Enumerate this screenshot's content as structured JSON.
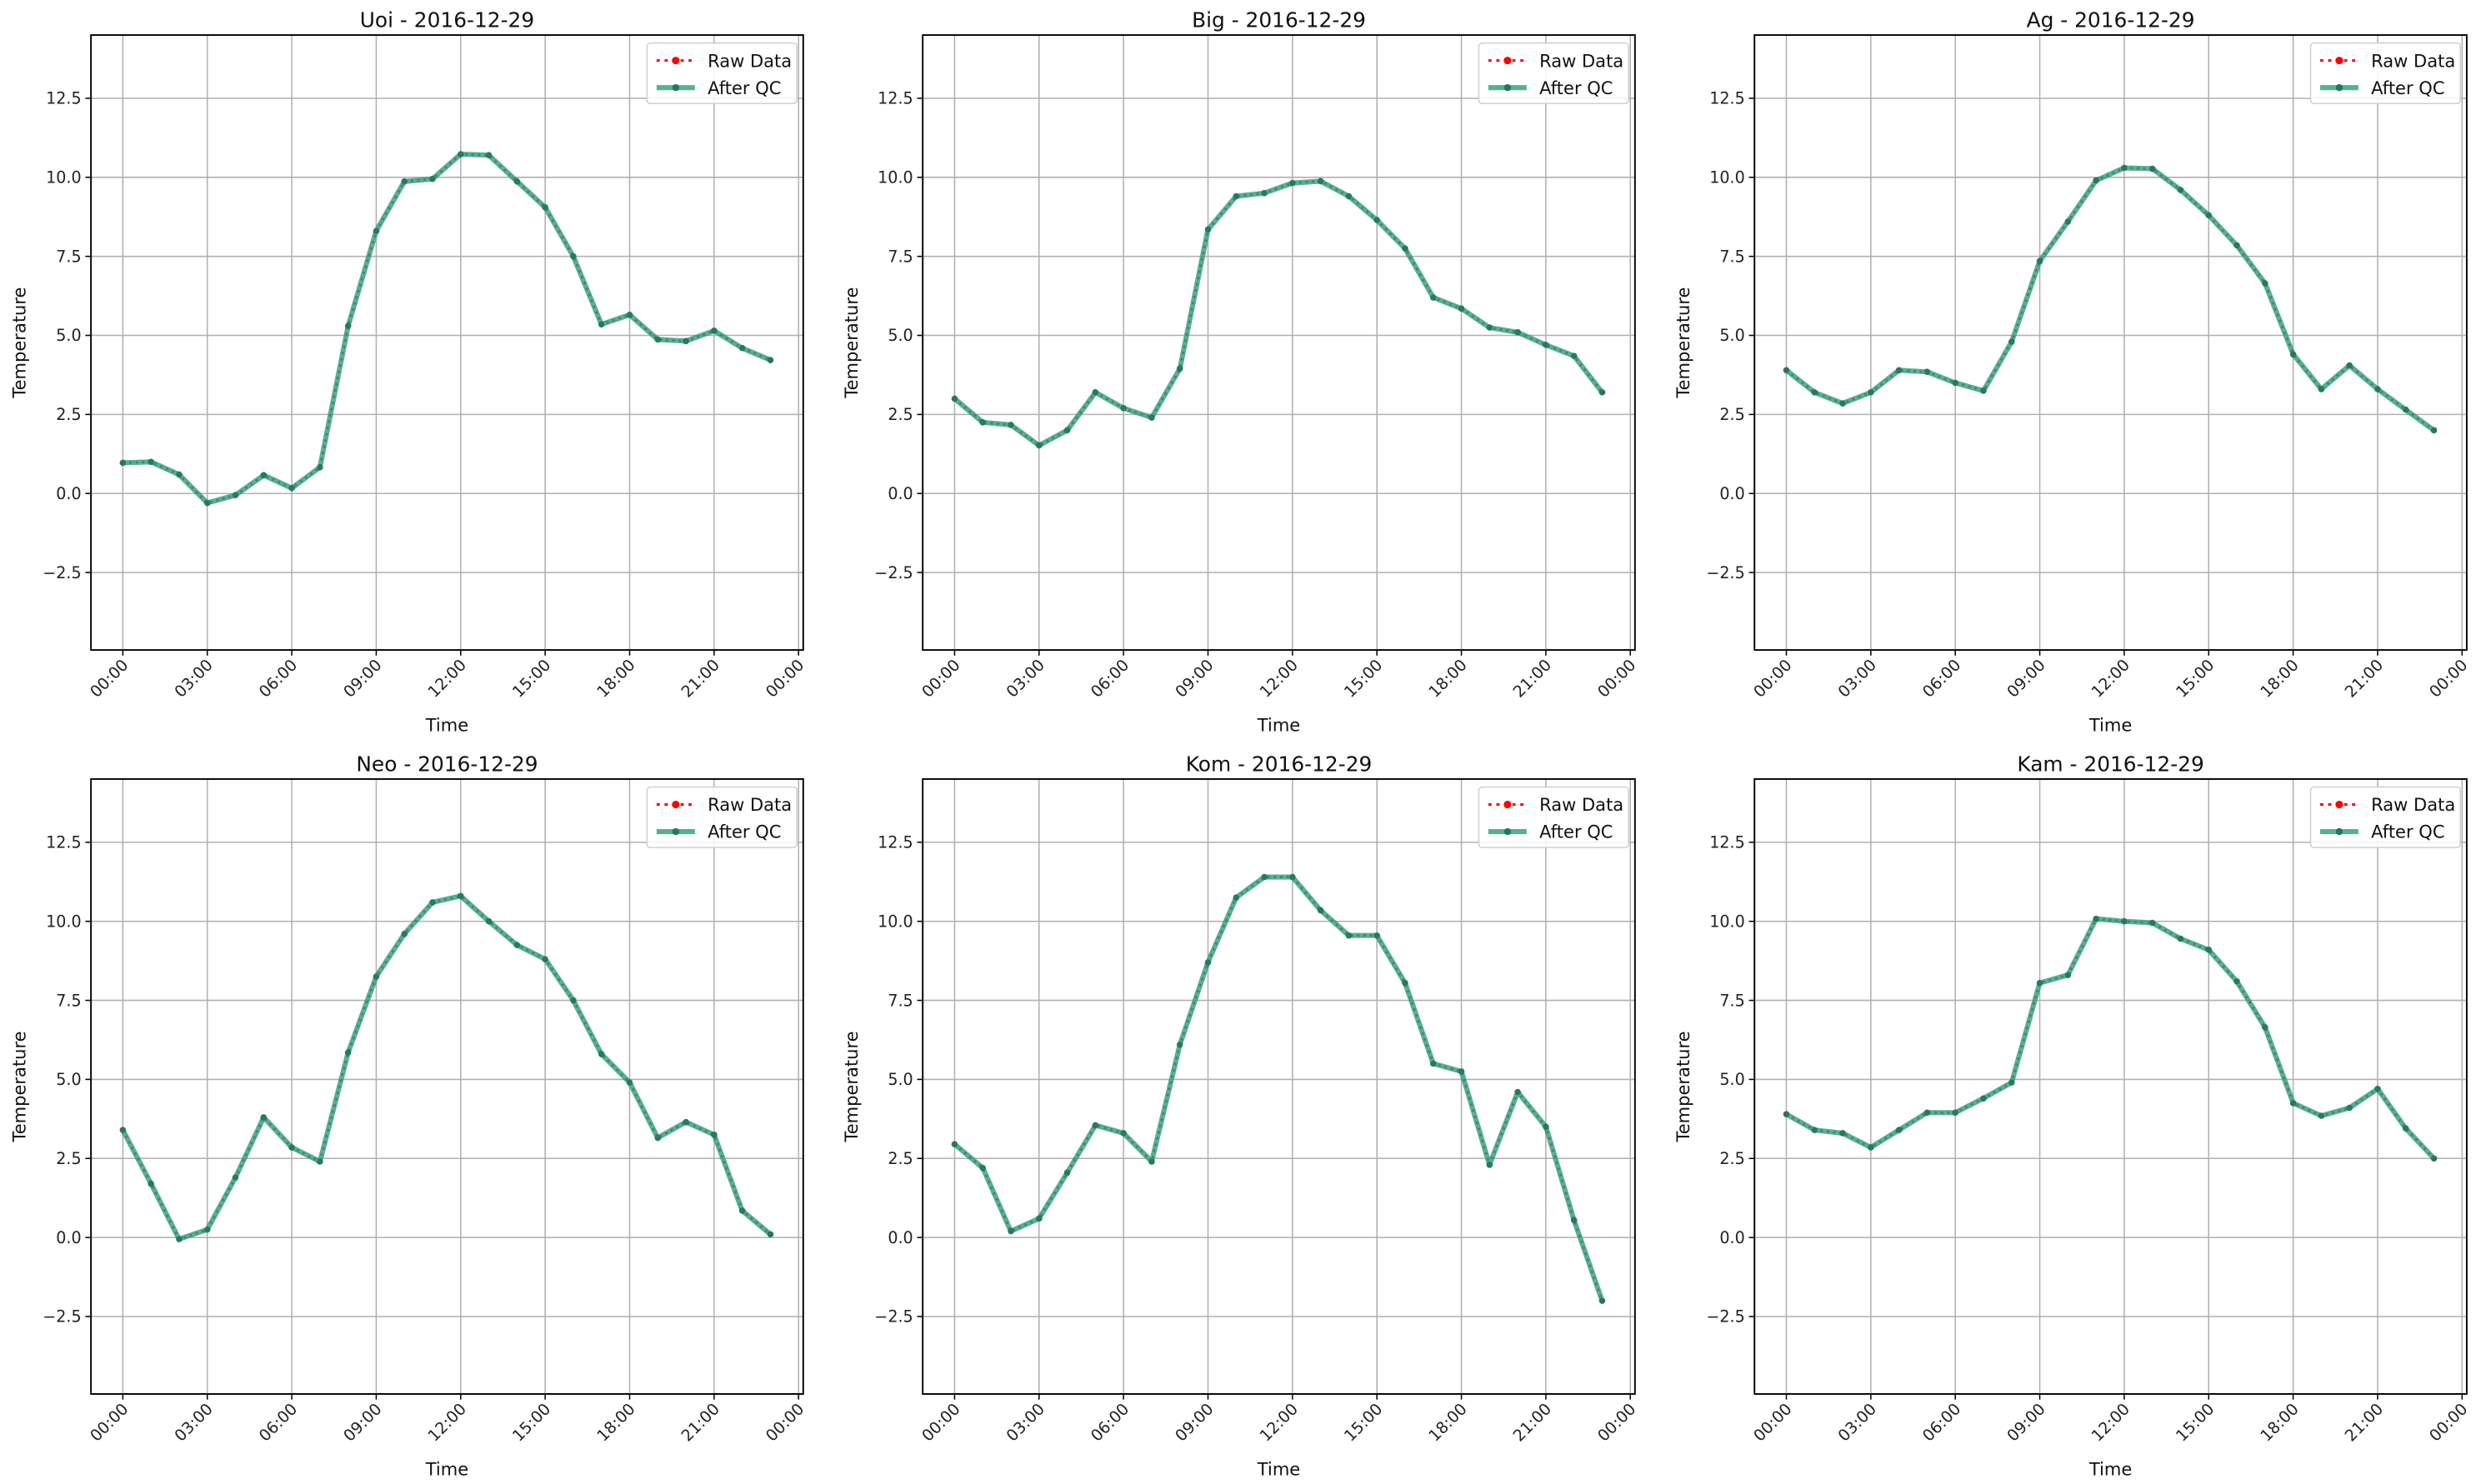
{
  "chart_data": [
    {
      "type": "line",
      "title": "Uoi - 2016-12-29",
      "xlabel": "Time",
      "ylabel": "Temperature",
      "x": [
        "00:00",
        "01:00",
        "02:00",
        "03:00",
        "04:00",
        "05:00",
        "06:00",
        "07:00",
        "08:00",
        "09:00",
        "10:00",
        "11:00",
        "12:00",
        "13:00",
        "14:00",
        "15:00",
        "16:00",
        "17:00",
        "18:00",
        "19:00",
        "20:00",
        "21:00",
        "22:00",
        "23:00"
      ],
      "series": [
        {
          "name": "Raw Data",
          "values": [
            0.97,
            1.0,
            0.6,
            -0.3,
            -0.05,
            0.58,
            0.17,
            0.83,
            5.3,
            8.3,
            9.87,
            9.95,
            10.73,
            10.7,
            9.87,
            9.05,
            7.5,
            5.35,
            5.65,
            4.87,
            4.82,
            5.15,
            4.6,
            4.22
          ]
        },
        {
          "name": "After QC",
          "values": [
            0.97,
            1.0,
            0.6,
            -0.3,
            -0.05,
            0.58,
            0.17,
            0.83,
            5.3,
            8.3,
            9.87,
            9.95,
            10.73,
            10.7,
            9.87,
            9.05,
            7.5,
            5.35,
            5.65,
            4.87,
            4.82,
            5.15,
            4.6,
            4.22
          ]
        }
      ]
    },
    {
      "type": "line",
      "title": "Big - 2016-12-29",
      "xlabel": "Time",
      "ylabel": "Temperature",
      "series": [
        {
          "name": "Raw Data",
          "values": [
            3.0,
            2.25,
            2.17,
            1.52,
            2.0,
            3.2,
            2.7,
            2.4,
            3.95,
            8.35,
            9.4,
            9.5,
            9.82,
            9.88,
            9.4,
            8.65,
            7.75,
            6.2,
            5.85,
            5.25,
            5.1,
            4.7,
            4.35,
            3.2
          ]
        },
        {
          "name": "After QC",
          "values": [
            3.0,
            2.25,
            2.17,
            1.52,
            2.0,
            3.2,
            2.7,
            2.4,
            3.95,
            8.35,
            9.4,
            9.5,
            9.82,
            9.88,
            9.4,
            8.65,
            7.75,
            6.2,
            5.85,
            5.25,
            5.1,
            4.7,
            4.35,
            3.2
          ]
        }
      ]
    },
    {
      "type": "line",
      "title": "Ag - 2016-12-29",
      "xlabel": "Time",
      "ylabel": "Temperature",
      "series": [
        {
          "name": "Raw Data",
          "values": [
            3.9,
            3.2,
            2.85,
            3.2,
            3.9,
            3.85,
            3.5,
            3.25,
            4.8,
            7.35,
            8.6,
            9.9,
            10.3,
            10.27,
            9.6,
            8.8,
            7.85,
            6.65,
            4.4,
            3.3,
            4.05,
            3.3,
            2.65,
            2.0
          ]
        },
        {
          "name": "After QC",
          "values": [
            3.9,
            3.2,
            2.85,
            3.2,
            3.9,
            3.85,
            3.5,
            3.25,
            4.8,
            7.35,
            8.6,
            9.9,
            10.3,
            10.27,
            9.6,
            8.8,
            7.85,
            6.65,
            4.4,
            3.3,
            4.05,
            3.3,
            2.65,
            2.0
          ]
        }
      ]
    },
    {
      "type": "line",
      "title": "Neo - 2016-12-29",
      "xlabel": "Time",
      "ylabel": "Temperature",
      "series": [
        {
          "name": "Raw Data",
          "values": [
            3.4,
            1.7,
            -0.05,
            0.25,
            1.9,
            3.8,
            2.85,
            2.4,
            5.85,
            8.25,
            9.6,
            10.6,
            10.8,
            10.0,
            9.25,
            8.8,
            7.5,
            5.8,
            4.9,
            3.15,
            3.65,
            3.25,
            0.85,
            0.1
          ]
        },
        {
          "name": "After QC",
          "values": [
            3.4,
            1.7,
            -0.05,
            0.25,
            1.9,
            3.8,
            2.85,
            2.4,
            5.85,
            8.25,
            9.6,
            10.6,
            10.8,
            10.0,
            9.25,
            8.8,
            7.5,
            5.8,
            4.9,
            3.15,
            3.65,
            3.25,
            0.85,
            0.1
          ]
        }
      ]
    },
    {
      "type": "line",
      "title": "Kom - 2016-12-29",
      "xlabel": "Time",
      "ylabel": "Temperature",
      "series": [
        {
          "name": "Raw Data",
          "values": [
            2.95,
            2.2,
            0.2,
            0.6,
            2.05,
            3.55,
            3.3,
            2.4,
            6.1,
            8.7,
            10.75,
            11.4,
            11.4,
            10.35,
            9.55,
            9.55,
            8.05,
            5.5,
            5.25,
            2.3,
            4.6,
            3.5,
            0.55,
            -2.0
          ]
        },
        {
          "name": "After QC",
          "values": [
            2.95,
            2.2,
            0.2,
            0.6,
            2.05,
            3.55,
            3.3,
            2.4,
            6.1,
            8.7,
            10.75,
            11.4,
            11.4,
            10.35,
            9.55,
            9.55,
            8.05,
            5.5,
            5.25,
            2.3,
            4.6,
            3.5,
            0.55,
            -2.0
          ]
        }
      ]
    },
    {
      "type": "line",
      "title": "Kam - 2016-12-29",
      "xlabel": "Time",
      "ylabel": "Temperature",
      "series": [
        {
          "name": "Raw Data",
          "values": [
            3.9,
            3.4,
            3.3,
            2.85,
            3.4,
            3.95,
            3.95,
            4.4,
            4.9,
            8.05,
            8.3,
            10.08,
            10.0,
            9.95,
            9.45,
            9.1,
            8.1,
            6.65,
            4.25,
            3.85,
            4.1,
            4.7,
            3.45,
            2.5
          ]
        },
        {
          "name": "After QC",
          "values": [
            3.9,
            3.4,
            3.3,
            2.85,
            3.4,
            3.95,
            3.95,
            4.4,
            4.9,
            8.05,
            8.3,
            10.08,
            10.0,
            9.95,
            9.45,
            9.1,
            8.1,
            6.65,
            4.25,
            3.85,
            4.1,
            4.7,
            3.45,
            2.5
          ]
        }
      ]
    }
  ],
  "shared": {
    "ylim": [
      -4.95,
      14.5
    ],
    "yticks": [
      -2.5,
      0.0,
      2.5,
      5.0,
      7.5,
      10.0,
      12.5
    ],
    "ytick_labels": [
      "−2.5",
      "0.0",
      "2.5",
      "5.0",
      "7.5",
      "10.0",
      "12.5"
    ],
    "xticks_hours": [
      0,
      3,
      6,
      9,
      12,
      15,
      18,
      21,
      24
    ],
    "xtick_labels": [
      "00:00",
      "03:00",
      "06:00",
      "09:00",
      "12:00",
      "15:00",
      "18:00",
      "21:00",
      "00:00"
    ],
    "grid": true,
    "legend_position": "top-right",
    "colors": {
      "raw": "#ff0000",
      "qc": "#2a9d78",
      "qc_marker": "#1f7a5c"
    }
  }
}
